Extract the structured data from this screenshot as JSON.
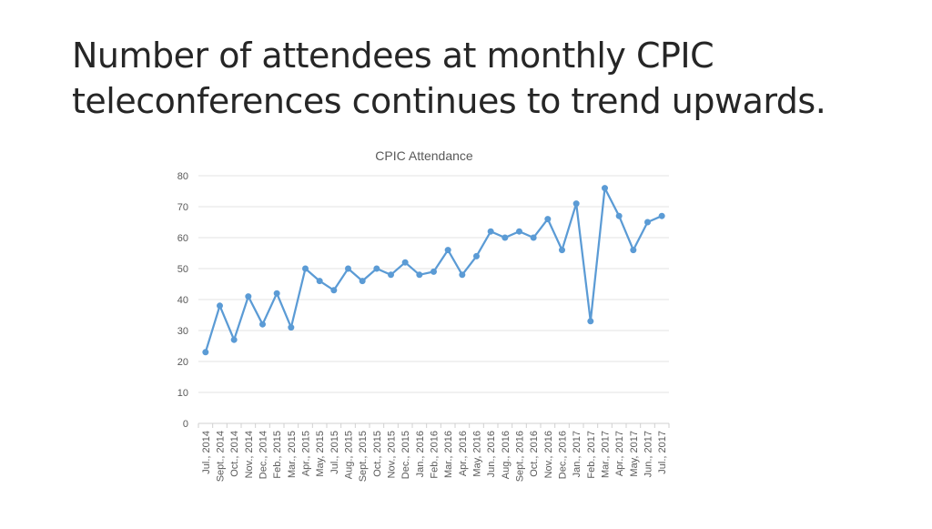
{
  "slide": {
    "title_line1": "Number of attendees at monthly CPIC",
    "title_line2": "teleconferences continues to trend upwards."
  },
  "chart_data": {
    "type": "line",
    "title": "CPIC Attendance",
    "xlabel": "",
    "ylabel": "",
    "ylim": [
      0,
      80
    ],
    "yticks": [
      0,
      10,
      20,
      30,
      40,
      50,
      60,
      70,
      80
    ],
    "grid": true,
    "legend": "none",
    "categories": [
      "Jul., 2014",
      "Sept., 2014",
      "Oct., 2014",
      "Nov., 2014",
      "Dec., 2014",
      "Feb., 2015",
      "Mar., 2015",
      "Apr., 2015",
      "May, 2015",
      "Jul., 2015",
      "Aug., 2015",
      "Sept., 2015",
      "Oct., 2015",
      "Nov., 2015",
      "Dec., 2015",
      "Jan., 2016",
      "Feb., 2016",
      "Mar., 2016",
      "Apr., 2016",
      "May, 2016",
      "Jun., 2016",
      "Aug., 2016",
      "Sept., 2016",
      "Oct., 2016",
      "Nov., 2016",
      "Dec., 2016",
      "Jan., 2017",
      "Feb., 2017",
      "Mar., 2017",
      "Apr., 2017",
      "May, 2017",
      "Jun., 2017",
      "Jul., 2017"
    ],
    "series": [
      {
        "name": "CPIC Attendance",
        "color": "#5b9bd5",
        "values": [
          23,
          38,
          27,
          41,
          32,
          42,
          31,
          50,
          46,
          43,
          50,
          46,
          50,
          48,
          52,
          48,
          49,
          56,
          48,
          54,
          62,
          60,
          62,
          60,
          66,
          56,
          71,
          33,
          76,
          67,
          56,
          65,
          67
        ]
      }
    ]
  }
}
